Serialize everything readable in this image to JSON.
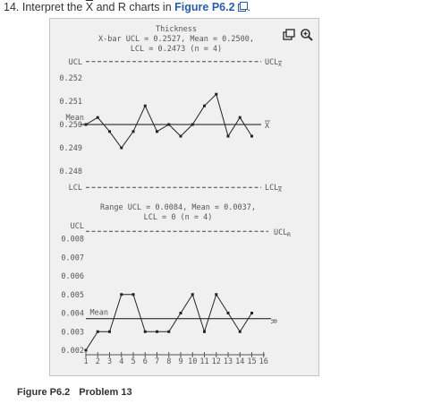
{
  "question": {
    "number": "14.",
    "text_before": "Interpret the",
    "xbar_symbol": "X",
    "text_middle": "and R charts in",
    "figure_link": "Figure P6.2",
    "period": "."
  },
  "toolbar": {
    "expand_icon": "expand-icon",
    "zoom_icon": "zoom-in-icon"
  },
  "chart_data": [
    {
      "type": "line",
      "title_lines": [
        "Thickness",
        "X-bar UCL = 0.2527, Mean = 0.2500,",
        "LCL = 0.2473 (n = 4)"
      ],
      "x": [
        1,
        2,
        3,
        4,
        5,
        6,
        7,
        8,
        9,
        10,
        11,
        12,
        13,
        14,
        15
      ],
      "values": [
        0.25,
        0.2503,
        0.2497,
        0.249,
        0.2497,
        0.2508,
        0.2497,
        0.25,
        0.2495,
        0.25,
        0.2508,
        0.2513,
        0.2495,
        0.2503,
        0.2495
      ],
      "yticks": [
        "0.252",
        "0.251",
        "0.250",
        "0.249",
        "0.248"
      ],
      "ylim": [
        0.2473,
        0.2527
      ],
      "mean": 0.25,
      "ucl": 0.2527,
      "lcl": 0.2473,
      "labels": {
        "ucl_left": "UCL",
        "lcl_left": "LCL",
        "mean_left": "Mean",
        "ucl_right": "UCL",
        "lcl_right": "LCL",
        "mean_right": "X",
        "ucl_sub": "X",
        "lcl_sub": "X"
      },
      "grid": false
    },
    {
      "type": "line",
      "title_lines": [
        "Range UCL = 0.0084, Mean = 0.0037,",
        "LCL = 0 (n = 4)"
      ],
      "x": [
        1,
        2,
        3,
        4,
        5,
        6,
        7,
        8,
        9,
        10,
        11,
        12,
        13,
        14,
        15
      ],
      "values": [
        0.002,
        0.003,
        0.003,
        0.005,
        0.005,
        0.003,
        0.003,
        0.003,
        0.004,
        0.005,
        0.003,
        0.005,
        0.004,
        0.003,
        0.004
      ],
      "yticks": [
        "0.008",
        "0.007",
        "0.006",
        "0.005",
        "0.004",
        "0.003",
        "0.002"
      ],
      "xticks": [
        "1",
        "2",
        "3",
        "4",
        "5",
        "6",
        "7",
        "8",
        "9",
        "10",
        "11",
        "12",
        "13",
        "14",
        "15",
        "16"
      ],
      "ylim": [
        0.002,
        0.0084
      ],
      "mean": 0.0037,
      "ucl": 0.0084,
      "labels": {
        "ucl_left": "UCL",
        "mean_left": "Mean",
        "ucl_right": "UCL",
        "ucl_sub": "R",
        "mean_right": "R"
      },
      "grid": false
    }
  ],
  "caption": {
    "label": "Figure P6.2",
    "text": "Problem 13"
  },
  "colors": {
    "link": "#2a5ea8",
    "panel_bg": "#f0f0f0",
    "line": "#222222"
  }
}
